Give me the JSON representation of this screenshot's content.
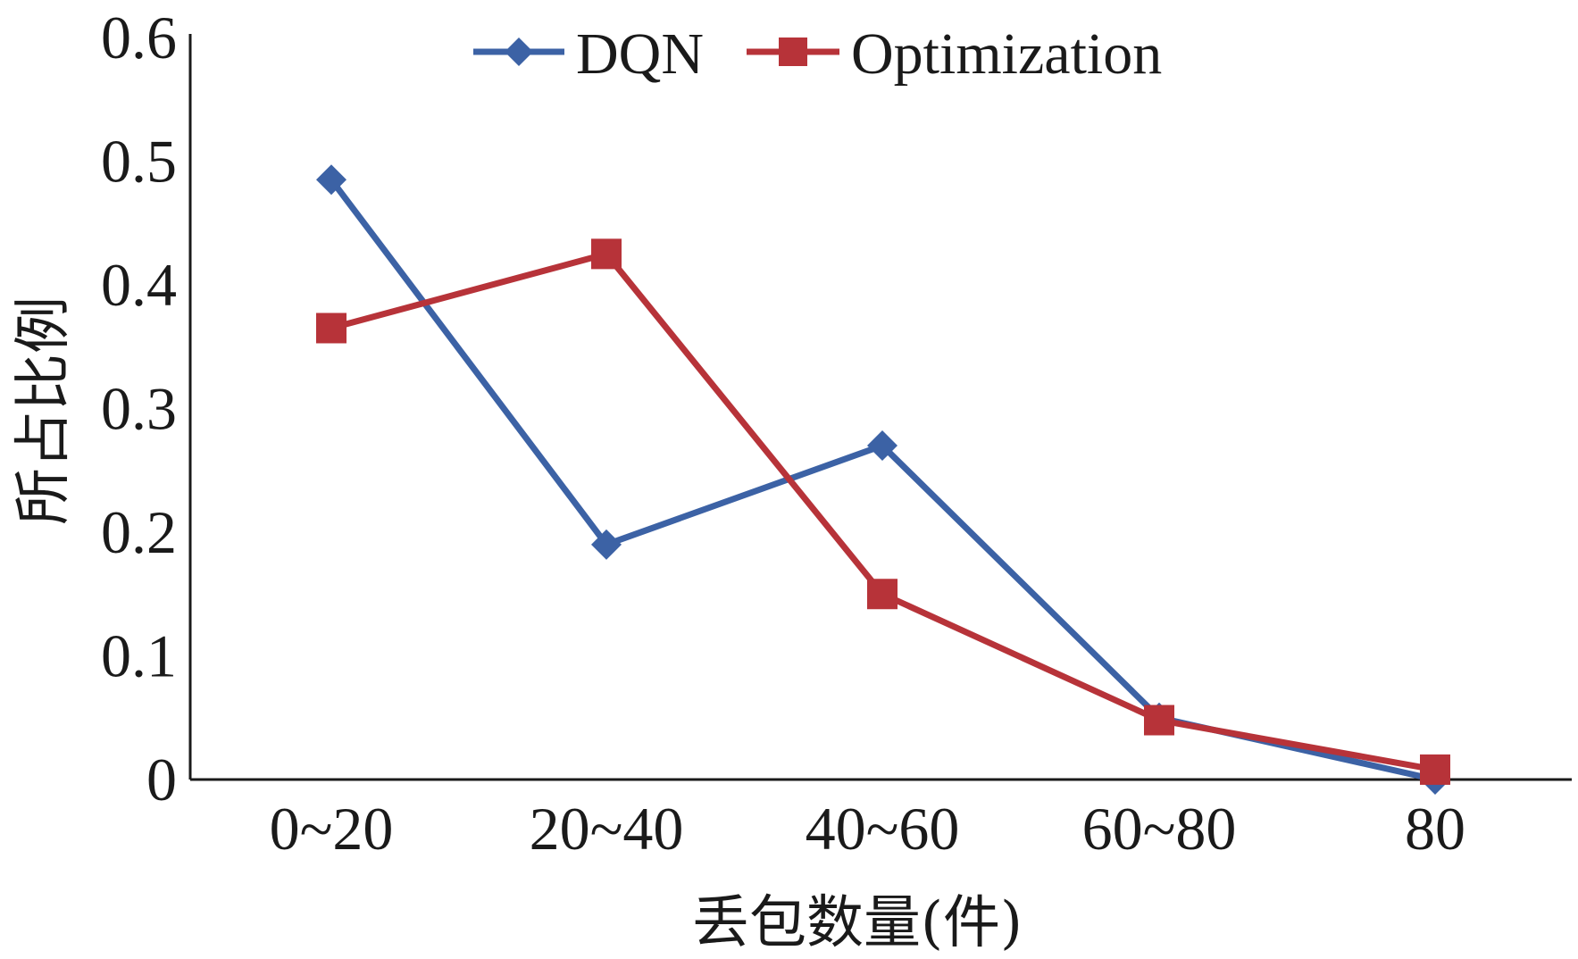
{
  "chart_data": {
    "type": "line",
    "categories": [
      "0~20",
      "20~40",
      "40~60",
      "60~80",
      "80"
    ],
    "series": [
      {
        "name": "DQN",
        "values": [
          0.485,
          0.19,
          0.27,
          0.05,
          0.0
        ],
        "color": "#3c62a5",
        "marker": "diamond"
      },
      {
        "name": "Optimization",
        "values": [
          0.365,
          0.425,
          0.15,
          0.048,
          0.008
        ],
        "color": "#b73339",
        "marker": "square"
      }
    ],
    "xlabel": "丢包数量(件)",
    "ylabel": "所占比例",
    "ylim": [
      0,
      0.6
    ],
    "yticks": [
      "0",
      "0.1",
      "0.2",
      "0.3",
      "0.4",
      "0.5",
      "0.6"
    ],
    "grid": false,
    "legend_position": "top-center"
  }
}
